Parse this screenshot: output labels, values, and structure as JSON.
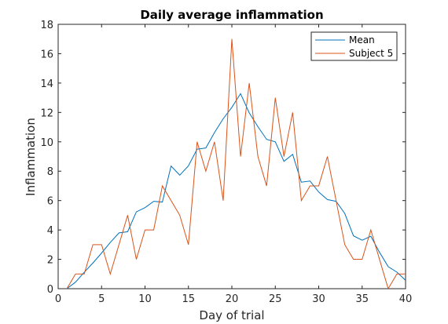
{
  "chart_data": {
    "type": "line",
    "title": "Daily average inflammation",
    "xlabel": "Day of trial",
    "ylabel": "Inflammation",
    "xlim": [
      0,
      40
    ],
    "ylim": [
      0,
      18
    ],
    "xticks": [
      0,
      5,
      10,
      15,
      20,
      25,
      30,
      35,
      40
    ],
    "yticks": [
      0,
      2,
      4,
      6,
      8,
      10,
      12,
      14,
      16,
      18
    ],
    "grid": false,
    "legend_position": "top-right",
    "x": [
      1,
      2,
      3,
      4,
      5,
      6,
      7,
      8,
      9,
      10,
      11,
      12,
      13,
      14,
      15,
      16,
      17,
      18,
      19,
      20,
      21,
      22,
      23,
      24,
      25,
      26,
      27,
      28,
      29,
      30,
      31,
      32,
      33,
      34,
      35,
      36,
      37,
      38,
      39,
      40
    ],
    "series": [
      {
        "name": "Mean",
        "color": "#0072BD",
        "values": [
          0.0,
          0.45,
          1.12,
          1.75,
          2.43,
          3.15,
          3.8,
          3.88,
          5.23,
          5.52,
          5.95,
          5.9,
          8.35,
          7.73,
          8.37,
          9.5,
          9.58,
          10.63,
          11.57,
          12.35,
          13.28,
          11.97,
          11.03,
          10.17,
          10.0,
          8.67,
          9.15,
          7.25,
          7.33,
          6.58,
          6.07,
          5.95,
          5.12,
          3.6,
          3.3,
          3.57,
          2.48,
          1.5,
          1.13,
          0.57
        ]
      },
      {
        "name": "Subject 5",
        "color": "#D95319",
        "values": [
          0,
          1,
          1,
          3,
          3,
          1,
          3,
          5,
          2,
          4,
          4,
          7,
          6,
          5,
          3,
          10,
          8,
          10,
          6,
          17,
          9,
          14,
          9,
          7,
          13,
          9,
          12,
          6,
          7,
          7,
          9,
          6,
          3,
          2,
          2,
          4,
          2,
          0,
          1,
          1
        ]
      }
    ]
  }
}
